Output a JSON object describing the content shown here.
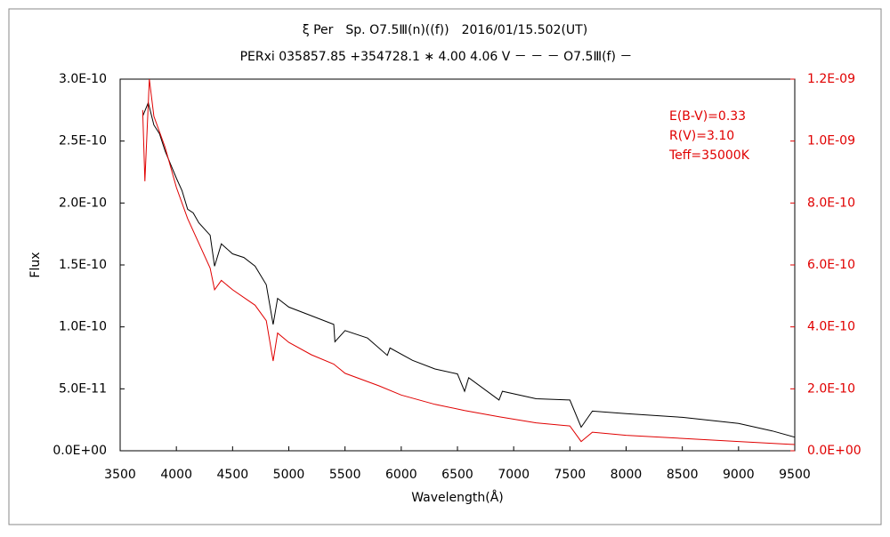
{
  "chart_data": {
    "type": "line",
    "title": "ξ Per　Sp. O7.5Ⅲ(n)((f))　2016/01/15.502(UT)",
    "subtitle": "PERxi 035857.85 +354728.1 ∗ 4.00 4.06 V － － － O7.5Ⅲ(f) －",
    "x_label": "Wavelength(Å)",
    "y_label": "Flux",
    "annotations": [
      "E(B-V)=0.33",
      "R(V)=3.10",
      "Teff=35000K"
    ],
    "annotation_color": "#e00000",
    "xlim": [
      3500,
      9500
    ],
    "xticks": [
      3500,
      4000,
      4500,
      5000,
      5500,
      6000,
      6500,
      7000,
      7500,
      8000,
      8500,
      9000,
      9500
    ],
    "ylim": [
      0,
      3e-10
    ],
    "yticks": [
      {
        "value": 0,
        "label": "0.0E+00"
      },
      {
        "value": 5e-11,
        "label": "5.0E-11"
      },
      {
        "value": 1e-10,
        "label": "1.0E-10"
      },
      {
        "value": 1.5e-10,
        "label": "1.5E-10"
      },
      {
        "value": 2e-10,
        "label": "2.0E-10"
      },
      {
        "value": 2.5e-10,
        "label": "2.5E-10"
      },
      {
        "value": 3e-10,
        "label": "3.0E-10"
      }
    ],
    "y2lim": [
      0,
      1.2e-09
    ],
    "y2ticks": [
      {
        "value": 0,
        "label": "0.0E+00"
      },
      {
        "value": 2e-10,
        "label": "2.0E-10"
      },
      {
        "value": 4e-10,
        "label": "4.0E-10"
      },
      {
        "value": 6e-10,
        "label": "6.0E-10"
      },
      {
        "value": 8e-10,
        "label": "8.0E-10"
      },
      {
        "value": 1e-09,
        "label": "1.0E-09"
      },
      {
        "value": 1.2e-09,
        "label": "1.2E-09"
      }
    ],
    "series": [
      {
        "color": "#000000",
        "x": [
          3700,
          3750,
          3800,
          3850,
          3900,
          3950,
          4000,
          4050,
          4100,
          4150,
          4200,
          4300,
          4340,
          4400,
          4500,
          4600,
          4700,
          4800,
          4861,
          4900,
          5000,
          5200,
          5400,
          5410,
          5500,
          5700,
          5876,
          5900,
          6100,
          6300,
          6500,
          6563,
          6600,
          6870,
          6900,
          7200,
          7500,
          7600,
          7700,
          8000,
          8500,
          9000,
          9300,
          9500
        ],
        "values": [
          2.7e-10,
          2.81e-10,
          2.63e-10,
          2.56e-10,
          2.42e-10,
          2.31e-10,
          2.2e-10,
          2.1e-10,
          1.95e-10,
          1.92e-10,
          1.84e-10,
          1.74e-10,
          1.49e-10,
          1.67e-10,
          1.59e-10,
          1.56e-10,
          1.49e-10,
          1.34e-10,
          1.02e-10,
          1.23e-10,
          1.16e-10,
          1.09e-10,
          1.02e-10,
          8.8e-11,
          9.7e-11,
          9.1e-11,
          7.7e-11,
          8.3e-11,
          7.3e-11,
          6.6e-11,
          6.2e-11,
          4.8e-11,
          5.9e-11,
          4.1e-11,
          4.8e-11,
          4.2e-11,
          4.1e-11,
          1.9e-11,
          3.2e-11,
          3e-11,
          2.7e-11,
          2.2e-11,
          1.6e-11,
          1.1e-11
        ]
      },
      {
        "color": "#e00000",
        "axis": "y2",
        "x": [
          3700,
          3720,
          3760,
          3800,
          3900,
          4000,
          4100,
          4200,
          4300,
          4340,
          4400,
          4500,
          4700,
          4800,
          4861,
          4900,
          5000,
          5200,
          5400,
          5500,
          5800,
          6000,
          6300,
          6563,
          6870,
          7200,
          7500,
          7600,
          7700,
          8000,
          8500,
          9000,
          9500
        ],
        "values": [
          1.1e-09,
          8.7e-10,
          1.2e-09,
          1.08e-09,
          9.8e-10,
          8.5e-10,
          7.5e-10,
          6.7e-10,
          5.9e-10,
          5.2e-10,
          5.5e-10,
          5.2e-10,
          4.7e-10,
          4.2e-10,
          2.9e-10,
          3.8e-10,
          3.5e-10,
          3.1e-10,
          2.8e-10,
          2.5e-10,
          2.1e-10,
          1.8e-10,
          1.5e-10,
          1.3e-10,
          1.1e-10,
          9e-11,
          8e-11,
          3e-11,
          6e-11,
          5e-11,
          4e-11,
          3e-11,
          2e-11
        ]
      }
    ]
  }
}
